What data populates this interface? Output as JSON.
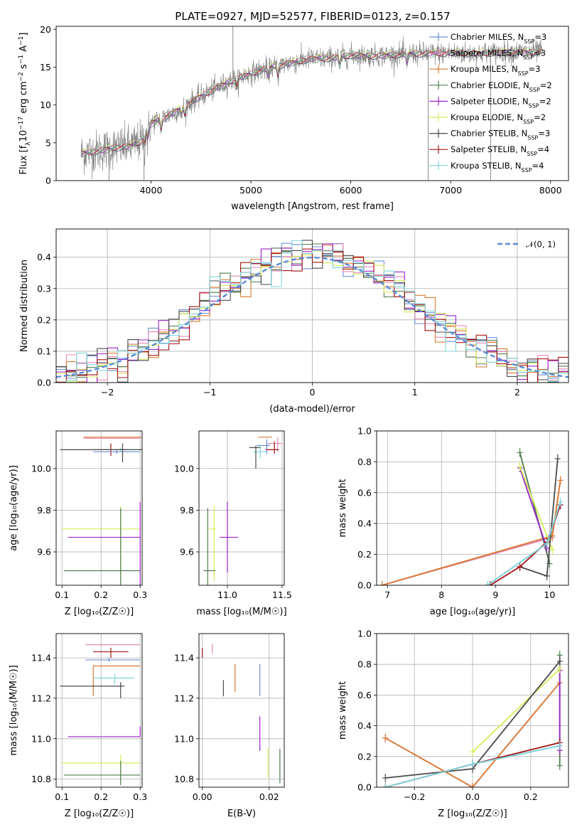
{
  "figure": {
    "title": "PLATE=0927, MJD=52577, FIBERID=0123, z=0.157"
  },
  "colors": {
    "Chabrier MILES": "#6a8fd6",
    "Salpeter MILES": "#e889b6",
    "Kroupa MILES": "#d9792e",
    "Chabrier ELODIE": "#4f7a4f",
    "Salpeter ELODIE": "#9b22c9",
    "Kroupa ELODIE": "#d6ee5a",
    "Chabrier STELIB": "#4a4a4a",
    "Salpeter STELIB": "#a51414",
    "Kroupa STELIB": "#7fd6dc",
    "spectrum": "#808080",
    "normal": "#5b8bd6"
  },
  "chart_data": [
    {
      "id": "spectrum",
      "type": "line",
      "xlabel": "wavelength [Angstrom, rest frame]",
      "ylabel": "Flux [f_λ10^-17 erg cm^-2 s^-1 A^-1]",
      "xlim": [
        3050,
        8180
      ],
      "ylim": [
        0,
        20.4
      ],
      "xticks": [
        4000,
        5000,
        6000,
        7000,
        8000
      ],
      "yticks": [
        0,
        5,
        10,
        15,
        20
      ],
      "grid": false,
      "legend_position": "top-right",
      "legend": [
        {
          "label": "Chabrier MILES, N",
          "sub": "SSP",
          "val": "=3"
        },
        {
          "label": "Salpeter MILES, N",
          "sub": "SSP",
          "val": "=3"
        },
        {
          "label": "Kroupa MILES, N",
          "sub": "SSP",
          "val": "=3"
        },
        {
          "label": "Chabrier ELODIE, N",
          "sub": "SSP",
          "val": "=2"
        },
        {
          "label": "Salpeter ELODIE, N",
          "sub": "SSP",
          "val": "=2"
        },
        {
          "label": "Kroupa ELODIE, N",
          "sub": "SSP",
          "val": "=2"
        },
        {
          "label": "Chabrier STELIB, N",
          "sub": "SSP",
          "val": "=3"
        },
        {
          "label": "Salpeter STELIB, N",
          "sub": "SSP",
          "val": "=4"
        },
        {
          "label": "Kroupa STELIB, N",
          "sub": "SSP",
          "val": "=4"
        }
      ],
      "continuum": {
        "x": [
          3300,
          3500,
          3600,
          3800,
          3900,
          4000,
          4200,
          4400,
          4600,
          4800,
          5000,
          5200,
          5400,
          5600,
          5800,
          6000,
          6200,
          6400,
          6600,
          6800,
          7000,
          7200,
          7400,
          7600,
          7800,
          7920
        ],
        "y": [
          3.6,
          4.0,
          4.3,
          4.6,
          5.2,
          7.6,
          8.8,
          10.4,
          11.9,
          13.2,
          14.2,
          15.0,
          15.6,
          16.1,
          16.2,
          16.6,
          16.5,
          16.6,
          16.8,
          16.8,
          16.9,
          16.8,
          16.9,
          17.0,
          17.0,
          17.1
        ]
      }
    },
    {
      "id": "residual-histogram",
      "type": "histogram",
      "xlabel": "(data-model)/error",
      "ylabel": "Normed distribution",
      "xlim": [
        -2.5,
        2.5
      ],
      "ylim": [
        0,
        0.49
      ],
      "xticks": [
        -2,
        -1,
        0,
        1,
        2
      ],
      "yticks": [
        0.0,
        0.1,
        0.2,
        0.3,
        0.4
      ],
      "grid": true,
      "legend_position": "top-right",
      "reference_curve": {
        "label": "𝒩(0, 1)",
        "mean": 0,
        "sigma": 1
      },
      "bin_edges_start": -2.5,
      "bin_width": 0.1
    },
    {
      "id": "age-vs-Z",
      "type": "errorbar",
      "xlabel": "Z [log₁₀(Z/Z☉)]",
      "ylabel": "age  [log₁₀(age/yr)]",
      "xlim": [
        0.085,
        0.305
      ],
      "ylim": [
        9.44,
        10.18
      ],
      "xticks": [
        0.1,
        0.2,
        0.3
      ],
      "yticks": [
        9.6,
        9.8,
        10.0
      ],
      "grid": true,
      "points": [
        {
          "model": "Kroupa MILES",
          "x": 0.255,
          "xerr": [
            0.1,
            0.05
          ],
          "y": 10.15,
          "yerr": [
            0,
            0
          ]
        },
        {
          "model": "Salpeter MILES",
          "x": 0.23,
          "xerr": [
            0.075,
            0.07
          ],
          "y": 10.145,
          "yerr": [
            0,
            0
          ]
        },
        {
          "model": "Salpeter STELIB",
          "x": 0.225,
          "xerr": [
            0.045,
            0.045
          ],
          "y": 10.09,
          "yerr": [
            0.03,
            0.03
          ]
        },
        {
          "model": "Chabrier MILES",
          "x": 0.24,
          "xerr": [
            0.06,
            0.06
          ],
          "y": 10.08,
          "yerr": [
            0.01,
            0.01
          ]
        },
        {
          "model": "Kroupa STELIB",
          "x": 0.25,
          "xerr": [
            0.07,
            0.05
          ],
          "y": 10.09,
          "yerr": [
            0.01,
            0.01
          ]
        },
        {
          "model": "Chabrier STELIB",
          "x": 0.255,
          "xerr": [
            0.16,
            0.06
          ],
          "y": 10.09,
          "yerr": [
            0.06,
            0.03
          ]
        },
        {
          "model": "Kroupa ELODIE",
          "x": 0.25,
          "xerr": [
            0.15,
            0.05
          ],
          "y": 9.71,
          "yerr": [
            0.24,
            0.11
          ]
        },
        {
          "model": "Salpeter ELODIE",
          "x": 0.3,
          "xerr": [
            0.185,
            0
          ],
          "y": 9.67,
          "yerr": [
            0.27,
            0.17
          ]
        },
        {
          "model": "Chabrier ELODIE",
          "x": 0.25,
          "xerr": [
            0.145,
            0.05
          ],
          "y": 9.51,
          "yerr": [
            0.07,
            0.3
          ]
        }
      ]
    },
    {
      "id": "age-vs-mass",
      "type": "errorbar",
      "xlabel": "mass [log₁₀(M/M☉)]",
      "ylabel": "",
      "xlim": [
        10.74,
        11.52
      ],
      "ylim": [
        9.44,
        10.18
      ],
      "xticks": [
        11.0,
        11.5
      ],
      "yticks": [
        9.6,
        9.8,
        10.0
      ],
      "grid": true,
      "points": [
        {
          "model": "Kroupa MILES",
          "x": 11.37,
          "xerr": [
            0.09,
            0.04
          ],
          "y": 10.15,
          "yerr": [
            0,
            0
          ]
        },
        {
          "model": "Salpeter MILES",
          "x": 11.46,
          "xerr": [
            0.1,
            0.04
          ],
          "y": 10.12,
          "yerr": [
            0.04,
            0.03
          ]
        },
        {
          "model": "Chabrier MILES",
          "x": 11.36,
          "xerr": [
            0.09,
            0.03
          ],
          "y": 10.11,
          "yerr": [
            0.04,
            0.03
          ]
        },
        {
          "model": "Salpeter STELIB",
          "x": 11.43,
          "xerr": [
            0.08,
            0.04
          ],
          "y": 10.09,
          "yerr": [
            0.02,
            0.04
          ]
        },
        {
          "model": "Kroupa STELIB",
          "x": 11.3,
          "xerr": [
            0.06,
            0.06
          ],
          "y": 10.08,
          "yerr": [
            0.03,
            0.03
          ]
        },
        {
          "model": "Chabrier STELIB",
          "x": 11.26,
          "xerr": [
            0.06,
            0.04
          ],
          "y": 10.1,
          "yerr": [
            0.1,
            0.01
          ]
        },
        {
          "model": "Kroupa ELODIE",
          "x": 10.88,
          "xerr": [
            0.05,
            0.02
          ],
          "y": 9.71,
          "yerr": [
            0.25,
            0.11
          ]
        },
        {
          "model": "Salpeter ELODIE",
          "x": 11.0,
          "xerr": [
            0.07,
            0.1
          ],
          "y": 9.67,
          "yerr": [
            0.17,
            0.17
          ]
        },
        {
          "model": "Chabrier ELODIE",
          "x": 10.82,
          "xerr": [
            0.04,
            0.07
          ],
          "y": 9.51,
          "yerr": [
            0.07,
            0.3
          ]
        }
      ]
    },
    {
      "id": "weight-vs-age",
      "type": "line",
      "xlabel": "age  [log₁₀(age/yr)]",
      "ylabel": "mass weight",
      "xlim": [
        6.8,
        10.35
      ],
      "ylim": [
        0,
        1.0
      ],
      "xticks": [
        7,
        8,
        9,
        10
      ],
      "yticks": [
        0.0,
        0.2,
        0.4,
        0.6,
        0.8,
        1.0
      ],
      "grid": true,
      "series": [
        {
          "model": "Chabrier MILES",
          "x": [
            8.85,
            9.95,
            10.2
          ],
          "y": [
            0.0,
            0.27,
            0.52
          ]
        },
        {
          "model": "Salpeter MILES",
          "x": [
            6.9,
            10.05,
            10.2
          ],
          "y": [
            0.0,
            0.31,
            0.68
          ]
        },
        {
          "model": "Kroupa MILES",
          "x": [
            6.9,
            10.05,
            10.2
          ],
          "y": [
            0.0,
            0.32,
            0.68
          ]
        },
        {
          "model": "Chabrier ELODIE",
          "x": [
            9.45,
            10.0
          ],
          "y": [
            0.86,
            0.14
          ]
        },
        {
          "model": "Salpeter ELODIE",
          "x": [
            9.45,
            9.95
          ],
          "y": [
            0.76,
            0.24
          ]
        },
        {
          "model": "Kroupa ELODIE",
          "x": [
            9.45,
            10.05
          ],
          "y": [
            0.77,
            0.23
          ]
        },
        {
          "model": "Chabrier STELIB",
          "x": [
            9.45,
            9.95,
            10.15
          ],
          "y": [
            0.12,
            0.06,
            0.82
          ]
        },
        {
          "model": "Salpeter STELIB",
          "x": [
            8.9,
            9.45,
            9.95,
            10.2
          ],
          "y": [
            0.0,
            0.12,
            0.28,
            0.52
          ]
        },
        {
          "model": "Kroupa STELIB",
          "x": [
            8.85,
            9.95,
            10.2
          ],
          "y": [
            0.0,
            0.27,
            0.54
          ]
        }
      ]
    },
    {
      "id": "mass-vs-Z",
      "type": "errorbar",
      "xlabel": "Z [log₁₀(Z/Z☉)]",
      "ylabel": "mass [log₁₀(M/M☉)]",
      "xlim": [
        0.085,
        0.305
      ],
      "ylim": [
        10.76,
        11.52
      ],
      "xticks": [
        0.1,
        0.2,
        0.3
      ],
      "yticks": [
        10.8,
        11.0,
        11.2,
        11.4
      ],
      "grid": true,
      "points": [
        {
          "model": "Salpeter MILES",
          "x": 0.23,
          "xerr": [
            0.07,
            0.07
          ],
          "y": 11.465,
          "yerr": [
            0,
            0
          ]
        },
        {
          "model": "Salpeter STELIB",
          "x": 0.225,
          "xerr": [
            0.045,
            0.045
          ],
          "y": 11.43,
          "yerr": [
            0.03,
            0.02
          ]
        },
        {
          "model": "Chabrier MILES",
          "x": 0.22,
          "xerr": [
            0.06,
            0.08
          ],
          "y": 11.39,
          "yerr": [
            0.01,
            0.01
          ]
        },
        {
          "model": "Kroupa MILES",
          "x": 0.18,
          "xerr": [
            0.0,
            0.12
          ],
          "y": 11.36,
          "yerr": [
            0.15,
            0.0
          ]
        },
        {
          "model": "Kroupa STELIB",
          "x": 0.235,
          "xerr": [
            0.055,
            0.05
          ],
          "y": 11.3,
          "yerr": [
            0.03,
            0.02
          ]
        },
        {
          "model": "Chabrier STELIB",
          "x": 0.25,
          "xerr": [
            0.155,
            0.01
          ],
          "y": 11.26,
          "yerr": [
            0.06,
            0.02
          ]
        },
        {
          "model": "Salpeter ELODIE",
          "x": 0.3,
          "xerr": [
            0.185,
            0
          ],
          "y": 11.01,
          "yerr": [
            0.0,
            0.05
          ]
        },
        {
          "model": "Kroupa ELODIE",
          "x": 0.25,
          "xerr": [
            0.15,
            0.05
          ],
          "y": 10.88,
          "yerr": [
            0.08,
            0.04
          ]
        },
        {
          "model": "Chabrier ELODIE",
          "x": 0.25,
          "xerr": [
            0.145,
            0.05
          ],
          "y": 10.82,
          "yerr": [
            0.05,
            0.07
          ]
        }
      ]
    },
    {
      "id": "mass-vs-ebv",
      "type": "errorbar",
      "xlabel": "E(B-V)",
      "ylabel": "",
      "xlim": [
        -0.001,
        0.0245
      ],
      "ylim": [
        10.76,
        11.52
      ],
      "xticks": [
        0.0,
        0.02
      ],
      "yticks": [
        10.8,
        11.0,
        11.2,
        11.4
      ],
      "grid": true,
      "points": [
        {
          "model": "Salpeter STELIB",
          "x": 0.0,
          "xerr": [
            0,
            0
          ],
          "y": 11.43,
          "yerr": [
            0.03,
            0.02
          ]
        },
        {
          "model": "Salpeter MILES",
          "x": 0.003,
          "xerr": [
            0,
            0
          ],
          "y": 11.47,
          "yerr": [
            0.05,
            0.0
          ]
        },
        {
          "model": "Chabrier STELIB",
          "x": 0.0063,
          "xerr": [
            0,
            0
          ],
          "y": 11.23,
          "yerr": [
            0.02,
            0.06
          ]
        },
        {
          "model": "Kroupa MILES",
          "x": 0.0098,
          "xerr": [
            0,
            0
          ],
          "y": 11.3,
          "yerr": [
            0.07,
            0.07
          ]
        },
        {
          "model": "Chabrier MILES",
          "x": 0.0172,
          "xerr": [
            0,
            0
          ],
          "y": 11.3,
          "yerr": [
            0.09,
            0.07
          ]
        },
        {
          "model": "Salpeter ELODIE",
          "x": 0.0172,
          "xerr": [
            0,
            0
          ],
          "y": 11.01,
          "yerr": [
            0.07,
            0.1
          ]
        },
        {
          "model": "Kroupa ELODIE",
          "x": 0.0197,
          "xerr": [
            0,
            0
          ],
          "y": 10.85,
          "yerr": [
            0.04,
            0.1
          ]
        },
        {
          "model": "Chabrier ELODIE",
          "x": 0.0232,
          "xerr": [
            0,
            0
          ],
          "y": 10.86,
          "yerr": [
            0.08,
            0.09
          ]
        }
      ]
    },
    {
      "id": "weight-vs-Z",
      "type": "line",
      "xlabel": "Z [log₁₀(Z/Z☉)]",
      "ylabel": "mass weight",
      "xlim": [
        -0.33,
        0.33
      ],
      "ylim": [
        0,
        1.0
      ],
      "xticks": [
        -0.2,
        0.0,
        0.2
      ],
      "yticks": [
        0.0,
        0.2,
        0.4,
        0.6,
        0.8,
        1.0
      ],
      "grid": true,
      "series": [
        {
          "model": "Chabrier MILES",
          "x": [
            -0.3,
            0.0,
            0.3
          ],
          "y": [
            0.0,
            0.15,
            0.27
          ]
        },
        {
          "model": "Salpeter MILES",
          "x": [
            -0.3,
            0.0,
            0.3
          ],
          "y": [
            0.32,
            0.0,
            0.68
          ]
        },
        {
          "model": "Kroupa MILES",
          "x": [
            -0.3,
            0.0,
            0.3
          ],
          "y": [
            0.32,
            0.0,
            0.68
          ]
        },
        {
          "model": "Chabrier ELODIE",
          "x": [
            0.3,
            0.3
          ],
          "y": [
            0.14,
            0.86
          ]
        },
        {
          "model": "Salpeter ELODIE",
          "x": [
            0.3,
            0.3
          ],
          "y": [
            0.24,
            0.76
          ]
        },
        {
          "model": "Kroupa ELODIE",
          "x": [
            0.0,
            0.3
          ],
          "y": [
            0.23,
            0.77
          ]
        },
        {
          "model": "Chabrier STELIB",
          "x": [
            -0.3,
            0.0,
            0.3
          ],
          "y": [
            0.06,
            0.12,
            0.82
          ]
        },
        {
          "model": "Salpeter STELIB",
          "x": [
            -0.3,
            0.0,
            0.3
          ],
          "y": [
            0.0,
            0.15,
            0.29
          ]
        },
        {
          "model": "Kroupa STELIB",
          "x": [
            -0.3,
            0.0,
            0.3
          ],
          "y": [
            0.0,
            0.15,
            0.27
          ]
        }
      ]
    }
  ]
}
